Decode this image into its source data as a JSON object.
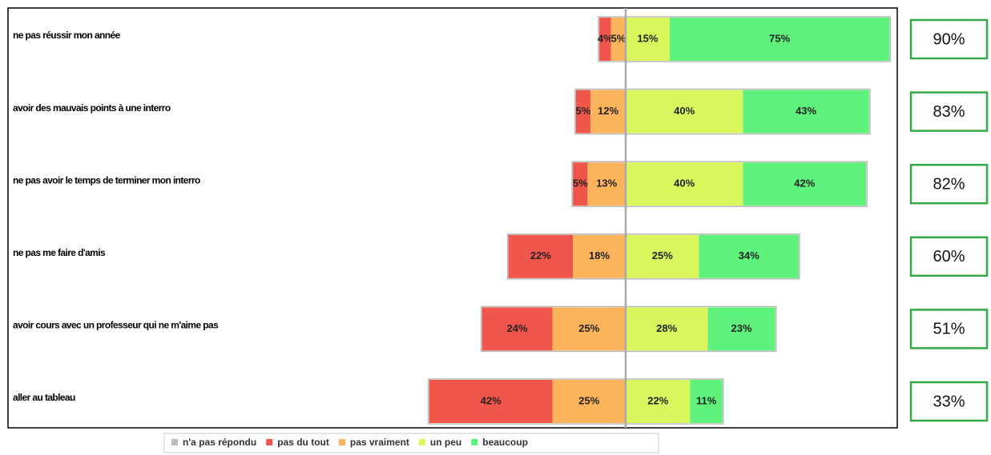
{
  "chart_data": {
    "type": "diverging-bar",
    "categories": [
      "ne pas réussir mon année",
      "avoir des mauvais points à une interro",
      "ne pas avoir le temps de terminer mon interro",
      "ne pas me faire d'amis",
      "avoir cours avec un professeur qui ne m'aime pas",
      "aller au tableau"
    ],
    "series": [
      {
        "name": "n'a pas répondu",
        "color": "#bbbbbb",
        "values": [
          null,
          null,
          null,
          null,
          null,
          null
        ]
      },
      {
        "name": "pas du tout",
        "color": "#f0564c",
        "values": [
          4,
          5,
          5,
          22,
          24,
          42
        ],
        "value_labels": [
          "4%",
          "5%",
          "5%",
          "22%",
          "24%",
          "42%"
        ]
      },
      {
        "name": "pas vraiment",
        "color": "#fbb35c",
        "values": [
          5,
          12,
          13,
          18,
          25,
          25
        ],
        "value_labels": [
          "5%",
          "12%",
          "13%",
          "18%",
          "25%",
          "25%"
        ]
      },
      {
        "name": "un peu",
        "color": "#d9f75c",
        "values": [
          15,
          40,
          40,
          25,
          28,
          22
        ],
        "value_labels": [
          "15%",
          "40%",
          "40%",
          "25%",
          "28%",
          "22%"
        ]
      },
      {
        "name": "beaucoup",
        "color": "#5ef27c",
        "values": [
          75,
          43,
          42,
          34,
          23,
          11
        ],
        "value_labels": [
          "75%",
          "43%",
          "42%",
          "34%",
          "23%",
          "11%"
        ]
      }
    ],
    "totals": [
      90,
      83,
      82,
      60,
      51,
      33
    ],
    "totals_labels": [
      "90%",
      "83%",
      "82%",
      "60%",
      "51%",
      "33%"
    ]
  }
}
